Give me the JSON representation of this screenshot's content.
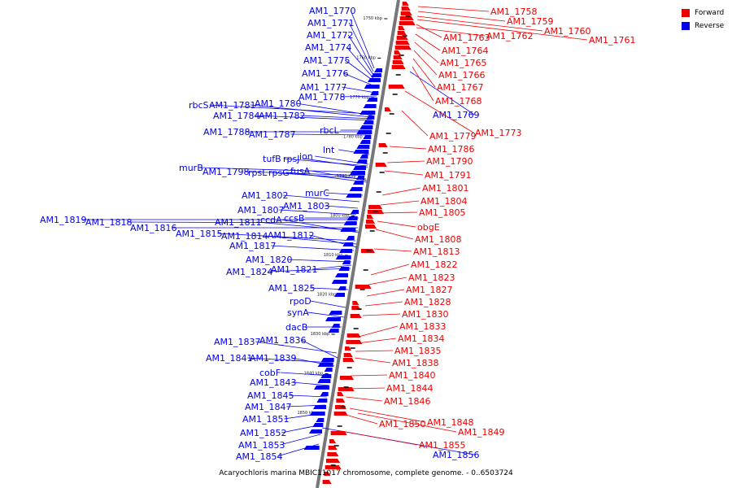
{
  "caption": "Acaryochloris marina MBIC11017 chromosome, complete genome. - 0..6503724",
  "legend": [
    {
      "label": "Forward",
      "color": "#ee0000"
    },
    {
      "label": "Reverse",
      "color": "#0000ee"
    }
  ],
  "colors": {
    "forward": "#ee0000",
    "reverse": "#0000ee",
    "backbone": "#777777"
  },
  "ticks": [
    "1750 kbp",
    "1760 kbp",
    "1770 kbp",
    "1780 kbp",
    "1790 kbp",
    "1800 kbp",
    "1810 kbp",
    "1820 kbp",
    "1830 kbp",
    "1840 kbp",
    "1850 kbp"
  ],
  "genes_reverse": [
    {
      "label": "AM1_1770",
      "p": 0.04
    },
    {
      "label": "AM1_1771",
      "p": 0.06
    },
    {
      "label": "AM1_1772",
      "p": 0.08
    },
    {
      "label": "AM1_1774",
      "p": 0.1
    },
    {
      "label": "AM1_1775",
      "p": 0.12
    },
    {
      "label": "AM1_1776",
      "p": 0.15
    },
    {
      "label": "AM1_1777",
      "p": 0.18
    },
    {
      "label": "AM1_1778",
      "p": 0.2
    },
    {
      "label": "rbcS",
      "p": 0.215
    },
    {
      "label": "AM1_1781",
      "p": 0.22
    },
    {
      "label": "AM1_1780",
      "p": 0.225
    },
    {
      "label": "AM1_1784",
      "p": 0.235
    },
    {
      "label": "AM1_1782",
      "p": 0.24
    },
    {
      "label": "AM1_1788",
      "p": 0.255
    },
    {
      "label": "AM1_1787",
      "p": 0.26
    },
    {
      "label": "rbcL",
      "p": 0.25
    },
    {
      "label": "lnt",
      "p": 0.3
    },
    {
      "label": "tufB",
      "p": 0.315
    },
    {
      "label": "rpsJ",
      "p": 0.32
    },
    {
      "label": "ion",
      "p": 0.325
    },
    {
      "label": "murB",
      "p": 0.335
    },
    {
      "label": "AM1_1798",
      "p": 0.34
    },
    {
      "label": "rpsL",
      "p": 0.345
    },
    {
      "label": "rpsG",
      "p": 0.35
    },
    {
      "label": "fusA",
      "p": 0.345
    },
    {
      "label": "murC",
      "p": 0.38
    },
    {
      "label": "AM1_1802",
      "p": 0.39
    },
    {
      "label": "AM1_1803",
      "p": 0.4
    },
    {
      "label": "AM1_1807",
      "p": 0.42
    },
    {
      "label": "AM1_1819",
      "p": 0.425
    },
    {
      "label": "AM1_1818",
      "p": 0.43
    },
    {
      "label": "AM1_1816",
      "p": 0.44
    },
    {
      "label": "ccsB",
      "p": 0.425
    },
    {
      "label": "AM1_1811",
      "p": 0.435
    },
    {
      "label": "ccdA",
      "p": 0.44
    },
    {
      "label": "AM1_1815",
      "p": 0.455
    },
    {
      "label": "AM1_1814",
      "p": 0.46
    },
    {
      "label": "AM1_1812",
      "p": 0.465
    },
    {
      "label": "AM1_1817",
      "p": 0.475
    },
    {
      "label": "AM1_1820",
      "p": 0.5
    },
    {
      "label": "AM1_1824",
      "p": 0.51
    },
    {
      "label": "AM1_1821",
      "p": 0.515
    },
    {
      "label": "AM1_1825",
      "p": 0.57
    },
    {
      "label": "rpoD",
      "p": 0.59
    },
    {
      "label": "synA",
      "p": 0.61
    },
    {
      "label": "dacB",
      "p": 0.63
    },
    {
      "label": "AM1_1837",
      "p": 0.69
    },
    {
      "label": "AM1_1836",
      "p": 0.7
    },
    {
      "label": "AM1_1841",
      "p": 0.72
    },
    {
      "label": "AM1_1839",
      "p": 0.725
    },
    {
      "label": "cobF",
      "p": 0.74
    },
    {
      "label": "AM1_1843",
      "p": 0.76
    },
    {
      "label": "AM1_1845",
      "p": 0.8
    },
    {
      "label": "AM1_1847",
      "p": 0.82
    },
    {
      "label": "AM1_1851",
      "p": 0.84
    },
    {
      "label": "AM1_1852",
      "p": 0.86
    },
    {
      "label": "AM1_1853",
      "p": 0.88
    },
    {
      "label": "AM1_1854",
      "p": 0.9
    },
    {
      "label": "AM1_1769",
      "p": 0.155
    },
    {
      "label": "AM1_1856",
      "p": 0.9
    }
  ],
  "genes_forward": [
    {
      "label": "AM1_1758",
      "p": 0.005
    },
    {
      "label": "AM1_1759",
      "p": 0.01
    },
    {
      "label": "AM1_1760",
      "p": 0.02
    },
    {
      "label": "AM1_1761",
      "p": 0.025
    },
    {
      "label": "AM1_1763",
      "p": 0.03
    },
    {
      "label": "AM1_1762",
      "p": 0.035
    },
    {
      "label": "AM1_1764",
      "p": 0.045
    },
    {
      "label": "AM1_1765",
      "p": 0.055
    },
    {
      "label": "AM1_1766",
      "p": 0.065
    },
    {
      "label": "AM1_1767",
      "p": 0.075
    },
    {
      "label": "AM1_1768",
      "p": 0.085
    },
    {
      "label": "AM1_1779",
      "p": 0.18
    },
    {
      "label": "AM1_1773",
      "p": 0.11
    },
    {
      "label": "AM1_1786",
      "p": 0.28
    },
    {
      "label": "AM1_1790",
      "p": 0.3
    },
    {
      "label": "AM1_1791",
      "p": 0.32
    },
    {
      "label": "AM1_1801",
      "p": 0.4
    },
    {
      "label": "AM1_1804",
      "p": 0.41
    },
    {
      "label": "AM1_1805",
      "p": 0.42
    },
    {
      "label": "obgE",
      "p": 0.43
    },
    {
      "label": "AM1_1808",
      "p": 0.44
    },
    {
      "label": "AM1_1813",
      "p": 0.48
    },
    {
      "label": "AM1_1822",
      "p": 0.52
    },
    {
      "label": "AM1_1823",
      "p": 0.55
    },
    {
      "label": "AM1_1827",
      "p": 0.57
    },
    {
      "label": "AM1_1828",
      "p": 0.59
    },
    {
      "label": "AM1_1830",
      "p": 0.61
    },
    {
      "label": "AM1_1833",
      "p": 0.65
    },
    {
      "label": "AM1_1834",
      "p": 0.66
    },
    {
      "label": "AM1_1835",
      "p": 0.67
    },
    {
      "label": "AM1_1838",
      "p": 0.68
    },
    {
      "label": "AM1_1840",
      "p": 0.72
    },
    {
      "label": "AM1_1844",
      "p": 0.76
    },
    {
      "label": "AM1_1846",
      "p": 0.78
    },
    {
      "label": "AM1_1848",
      "p": 0.82
    },
    {
      "label": "AM1_1850",
      "p": 0.81
    },
    {
      "label": "AM1_1849",
      "p": 0.84
    },
    {
      "label": "AM1_1855",
      "p": 0.87
    }
  ]
}
